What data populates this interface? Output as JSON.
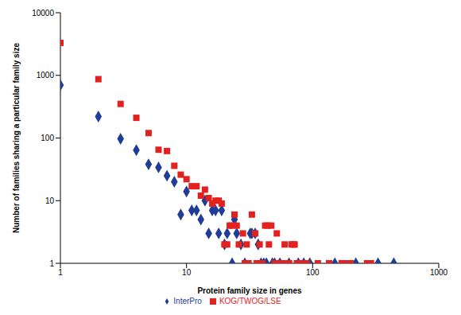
{
  "chart_data": {
    "type": "scatter",
    "x_label": "Protein family size in genes",
    "y_label": "Number of families sharing a particular family size",
    "log": true,
    "grid": false,
    "legend": "bottom",
    "xlim": [
      1,
      1000
    ],
    "xticks": [
      1,
      10,
      100,
      1000
    ],
    "ylim": [
      1,
      10000
    ],
    "yticks": [
      1,
      10,
      100,
      1000,
      10000
    ],
    "series": [
      {
        "name": "InterPro",
        "color": "#1f3c96",
        "marker": "diamond",
        "x": [
          1,
          2,
          3,
          4,
          5,
          6,
          7,
          8,
          9,
          10,
          11,
          12,
          13,
          14,
          15,
          16,
          17,
          18,
          19,
          20,
          21,
          23,
          24,
          25,
          27,
          29,
          32,
          33,
          35,
          37,
          39,
          41,
          43,
          48,
          50,
          55,
          65,
          77,
          85,
          95,
          150,
          220,
          330,
          440
        ],
        "values": [
          700,
          220,
          97,
          64,
          38,
          34,
          25,
          20,
          6,
          14,
          7,
          7,
          5,
          10,
          3,
          7,
          7,
          3,
          7,
          2,
          3,
          1,
          5,
          3,
          2,
          1,
          3,
          3,
          3,
          2,
          1,
          1,
          1,
          1,
          1,
          1,
          1,
          1,
          1,
          1,
          1,
          1,
          1,
          1
        ]
      },
      {
        "name": "KOG/TWOG/LSE",
        "color": "#e3221f",
        "marker": "square",
        "x": [
          1,
          2,
          3,
          4,
          5,
          6,
          7,
          8,
          9,
          10,
          11,
          12,
          13,
          14,
          15,
          16,
          17,
          18,
          19,
          20,
          21,
          22,
          23,
          24,
          25,
          26,
          28,
          29,
          30,
          31,
          33,
          35,
          36,
          38,
          40,
          42,
          44,
          45,
          47,
          50,
          52,
          55,
          57,
          60,
          62,
          65,
          68,
          70,
          72,
          75,
          80,
          85,
          90,
          110,
          135,
          170,
          180,
          200,
          270,
          290
        ],
        "values": [
          3300,
          870,
          350,
          210,
          120,
          65,
          62,
          36,
          26,
          22,
          17,
          17,
          12,
          15,
          11,
          9,
          10,
          10,
          9,
          2,
          2,
          4,
          4,
          6,
          4,
          2,
          3,
          1,
          2,
          1,
          6,
          3,
          1,
          2,
          1,
          4,
          4,
          2,
          4,
          1,
          3,
          1,
          1,
          2,
          1,
          1,
          2,
          2,
          2,
          1,
          1,
          1,
          1,
          1,
          1,
          1,
          1,
          1,
          1,
          1
        ]
      }
    ]
  }
}
